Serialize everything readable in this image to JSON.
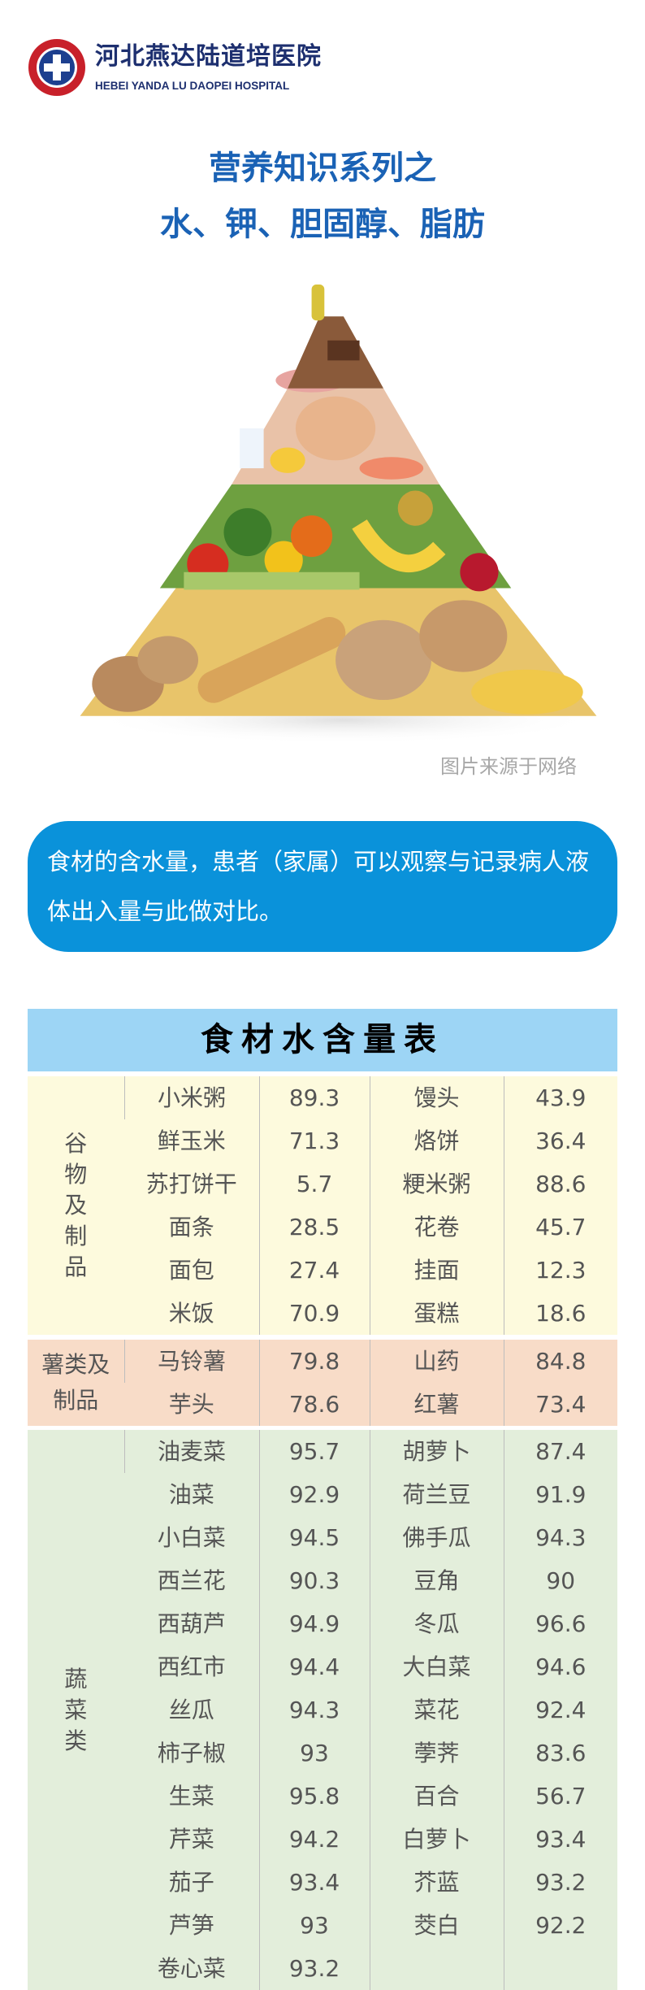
{
  "header": {
    "hospital_name_cn": "河北燕达陆道培医院",
    "hospital_name_en": "HEBEI YANDA LU DAOPEI HOSPITAL",
    "logo_icon": "hospital-cross-seal-icon"
  },
  "title": {
    "line1": "营养知识系列之",
    "line2": "水、钾、胆固醇、脂肪"
  },
  "image": {
    "caption": "图片来源于网络"
  },
  "note": {
    "text": "食材的含水量，患者（家属）可以观察与记录病人液体出入量与此做对比。"
  },
  "table": {
    "title": "食材水含量表",
    "sections": [
      {
        "category": "谷物及制品",
        "color": "#fdfadd",
        "rows": [
          [
            "小米粥",
            "89.3",
            "馒头",
            "43.9"
          ],
          [
            "鲜玉米",
            "71.3",
            "烙饼",
            "36.4"
          ],
          [
            "苏打饼干",
            "5.7",
            "粳米粥",
            "88.6"
          ],
          [
            "面条",
            "28.5",
            "花卷",
            "45.7"
          ],
          [
            "面包",
            "27.4",
            "挂面",
            "12.3"
          ],
          [
            "米饭",
            "70.9",
            "蛋糕",
            "18.6"
          ]
        ]
      },
      {
        "category": "薯类及制品",
        "color": "#f8dcc8",
        "rows": [
          [
            "马铃薯",
            "79.8",
            "山药",
            "84.8"
          ],
          [
            "芋头",
            "78.6",
            "红薯",
            "73.4"
          ]
        ]
      },
      {
        "category": "蔬菜类",
        "color": "#e3eedb",
        "rows": [
          [
            "油麦菜",
            "95.7",
            "胡萝卜",
            "87.4"
          ],
          [
            "油菜",
            "92.9",
            "荷兰豆",
            "91.9"
          ],
          [
            "小白菜",
            "94.5",
            "佛手瓜",
            "94.3"
          ],
          [
            "西兰花",
            "90.3",
            "豆角",
            "90"
          ],
          [
            "西葫芦",
            "94.9",
            "冬瓜",
            "96.6"
          ],
          [
            "西红市",
            "94.4",
            "大白菜",
            "94.6"
          ],
          [
            "丝瓜",
            "94.3",
            "菜花",
            "92.4"
          ],
          [
            "柿子椒",
            "93",
            "荸荠",
            "83.6"
          ],
          [
            "生菜",
            "95.8",
            "百合",
            "56.7"
          ],
          [
            "芹菜",
            "94.2",
            "白萝卜",
            "93.4"
          ],
          [
            "茄子",
            "93.4",
            "芥蓝",
            "93.2"
          ],
          [
            "芦笋",
            "93",
            "茭白",
            "92.2"
          ],
          [
            "卷心菜",
            "93.2",
            "",
            ""
          ]
        ]
      }
    ]
  },
  "colors": {
    "title_blue": "#1a62b5",
    "note_blue": "#0a92da",
    "table_header": "#9dd5f5",
    "hospital_navy": "#1d2f6f",
    "logo_red": "#c8202a"
  }
}
